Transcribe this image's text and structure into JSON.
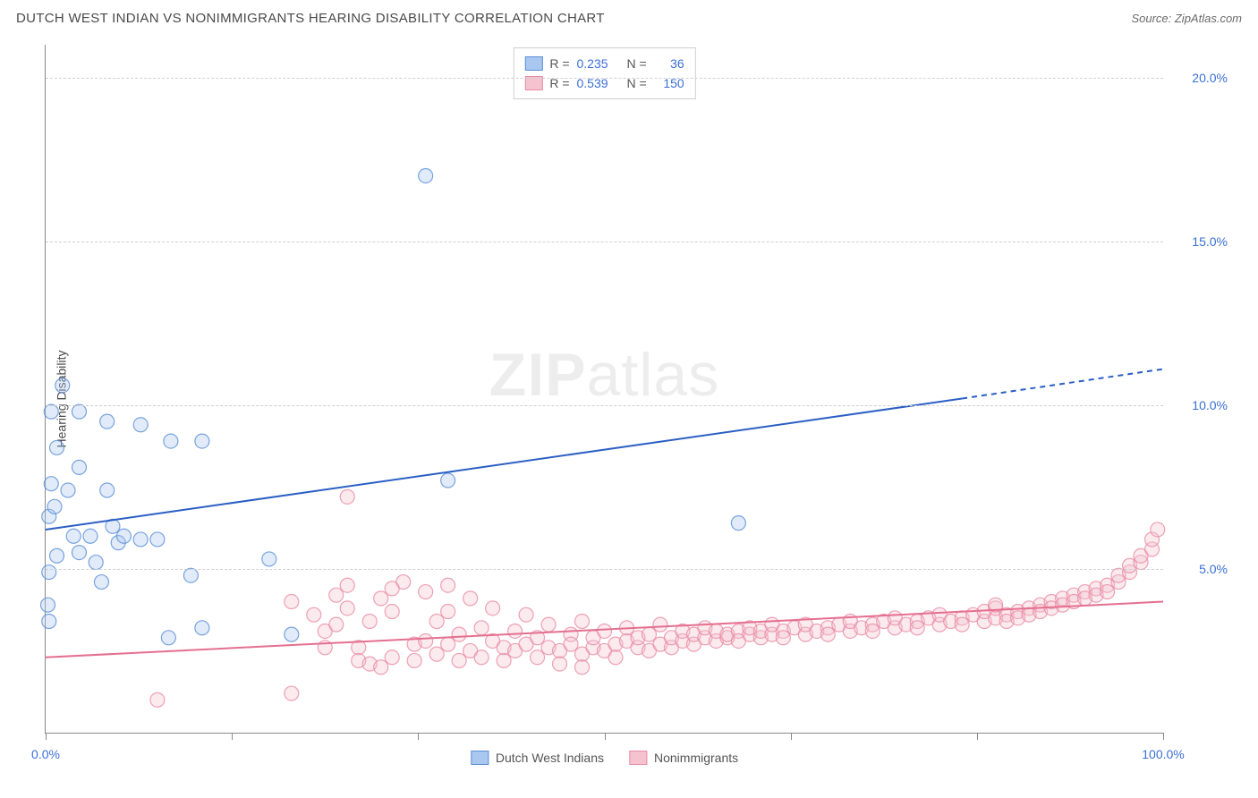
{
  "title": "DUTCH WEST INDIAN VS NONIMMIGRANTS HEARING DISABILITY CORRELATION CHART",
  "source": "Source: ZipAtlas.com",
  "watermark_zip": "ZIP",
  "watermark_atlas": "atlas",
  "ylabel": "Hearing Disability",
  "chart": {
    "type": "scatter",
    "background_color": "#ffffff",
    "grid_color": "#d0d0d0",
    "axis_color": "#888888",
    "xlim": [
      0,
      100
    ],
    "ylim": [
      0,
      21
    ],
    "xticks": [
      0,
      16.67,
      33.33,
      50,
      66.67,
      83.33,
      100
    ],
    "xtick_labels_visible": {
      "0": "0.0%",
      "100": "100.0%"
    },
    "yticks": [
      5,
      10,
      15,
      20
    ],
    "ytick_labels": [
      "5.0%",
      "10.0%",
      "15.0%",
      "20.0%"
    ],
    "marker_radius": 8,
    "marker_fill_opacity": 0.35,
    "marker_stroke_opacity": 0.8,
    "marker_stroke_width": 1.2,
    "trend_line_width": 2,
    "label_fontsize": 14,
    "label_color": "#3b6fd4",
    "series": [
      {
        "name": "Dutch West Indians",
        "color_fill": "#a9c7ef",
        "color_stroke": "#5a8fd6",
        "trend_color": "#2a5fc4",
        "R": "0.235",
        "N": "36",
        "trend": {
          "x1": 0,
          "y1": 6.2,
          "x2": 82,
          "y2": 10.2,
          "extrap_x2": 100,
          "extrap_y2": 11.1
        },
        "points": [
          [
            1.5,
            10.6
          ],
          [
            0.5,
            9.8
          ],
          [
            5.5,
            9.5
          ],
          [
            8.5,
            9.4
          ],
          [
            3.0,
            9.8
          ],
          [
            1.0,
            8.7
          ],
          [
            11.2,
            8.9
          ],
          [
            14.0,
            8.9
          ],
          [
            3.0,
            8.1
          ],
          [
            0.5,
            7.6
          ],
          [
            2.0,
            7.4
          ],
          [
            5.5,
            7.4
          ],
          [
            0.3,
            6.6
          ],
          [
            4.0,
            6.0
          ],
          [
            6.5,
            5.8
          ],
          [
            2.5,
            6.0
          ],
          [
            7.0,
            6.0
          ],
          [
            8.5,
            5.9
          ],
          [
            10.0,
            5.9
          ],
          [
            3.0,
            5.5
          ],
          [
            1.0,
            5.4
          ],
          [
            0.3,
            4.9
          ],
          [
            5.0,
            4.6
          ],
          [
            13.0,
            4.8
          ],
          [
            20.0,
            5.3
          ],
          [
            0.2,
            3.9
          ],
          [
            0.3,
            3.4
          ],
          [
            14.0,
            3.2
          ],
          [
            11.0,
            2.9
          ],
          [
            22.0,
            3.0
          ],
          [
            36.0,
            7.7
          ],
          [
            34.0,
            17.0
          ],
          [
            62.0,
            6.4
          ],
          [
            4.5,
            5.2
          ],
          [
            0.8,
            6.9
          ],
          [
            6.0,
            6.3
          ]
        ]
      },
      {
        "name": "Nonimmigrants",
        "color_fill": "#f4c3cf",
        "color_stroke": "#e88ba3",
        "trend_color": "#e56f90",
        "R": "0.539",
        "N": "150",
        "trend": {
          "x1": 0,
          "y1": 2.3,
          "x2": 100,
          "y2": 4.0
        },
        "points": [
          [
            10,
            1.0
          ],
          [
            22,
            1.2
          ],
          [
            22,
            4.0
          ],
          [
            24,
            3.6
          ],
          [
            25,
            3.1
          ],
          [
            25,
            2.6
          ],
          [
            26,
            4.2
          ],
          [
            26,
            3.3
          ],
          [
            27,
            7.2
          ],
          [
            27,
            3.8
          ],
          [
            28,
            2.6
          ],
          [
            28,
            2.2
          ],
          [
            29,
            2.1
          ],
          [
            29,
            3.4
          ],
          [
            30,
            4.1
          ],
          [
            30,
            2.0
          ],
          [
            31,
            2.3
          ],
          [
            31,
            3.7
          ],
          [
            32,
            4.6
          ],
          [
            33,
            2.7
          ],
          [
            33,
            2.2
          ],
          [
            34,
            4.3
          ],
          [
            34,
            2.8
          ],
          [
            35,
            2.4
          ],
          [
            35,
            3.4
          ],
          [
            36,
            2.7
          ],
          [
            36,
            3.7
          ],
          [
            37,
            3.0
          ],
          [
            37,
            2.2
          ],
          [
            38,
            4.1
          ],
          [
            38,
            2.5
          ],
          [
            39,
            3.2
          ],
          [
            39,
            2.3
          ],
          [
            40,
            3.8
          ],
          [
            40,
            2.8
          ],
          [
            41,
            2.6
          ],
          [
            41,
            2.2
          ],
          [
            42,
            3.1
          ],
          [
            42,
            2.5
          ],
          [
            43,
            3.6
          ],
          [
            43,
            2.7
          ],
          [
            44,
            2.3
          ],
          [
            44,
            2.9
          ],
          [
            45,
            2.6
          ],
          [
            45,
            3.3
          ],
          [
            46,
            2.5
          ],
          [
            46,
            2.1
          ],
          [
            47,
            3.0
          ],
          [
            47,
            2.7
          ],
          [
            48,
            2.4
          ],
          [
            48,
            3.4
          ],
          [
            49,
            2.6
          ],
          [
            49,
            2.9
          ],
          [
            50,
            2.5
          ],
          [
            50,
            3.1
          ],
          [
            51,
            2.7
          ],
          [
            51,
            2.3
          ],
          [
            52,
            2.8
          ],
          [
            52,
            3.2
          ],
          [
            53,
            2.6
          ],
          [
            53,
            2.9
          ],
          [
            54,
            2.5
          ],
          [
            54,
            3.0
          ],
          [
            55,
            2.7
          ],
          [
            55,
            3.3
          ],
          [
            56,
            2.6
          ],
          [
            56,
            2.9
          ],
          [
            57,
            2.8
          ],
          [
            57,
            3.1
          ],
          [
            58,
            2.7
          ],
          [
            58,
            3.0
          ],
          [
            59,
            2.9
          ],
          [
            59,
            3.2
          ],
          [
            60,
            2.8
          ],
          [
            60,
            3.1
          ],
          [
            61,
            2.9
          ],
          [
            61,
            3.0
          ],
          [
            62,
            3.1
          ],
          [
            62,
            2.8
          ],
          [
            63,
            3.0
          ],
          [
            63,
            3.2
          ],
          [
            64,
            2.9
          ],
          [
            64,
            3.1
          ],
          [
            65,
            3.0
          ],
          [
            65,
            3.3
          ],
          [
            66,
            3.1
          ],
          [
            66,
            2.9
          ],
          [
            67,
            3.2
          ],
          [
            68,
            3.0
          ],
          [
            68,
            3.3
          ],
          [
            69,
            3.1
          ],
          [
            70,
            3.2
          ],
          [
            70,
            3.0
          ],
          [
            71,
            3.3
          ],
          [
            72,
            3.1
          ],
          [
            72,
            3.4
          ],
          [
            73,
            3.2
          ],
          [
            74,
            3.3
          ],
          [
            74,
            3.1
          ],
          [
            75,
            3.4
          ],
          [
            76,
            3.2
          ],
          [
            76,
            3.5
          ],
          [
            77,
            3.3
          ],
          [
            78,
            3.4
          ],
          [
            78,
            3.2
          ],
          [
            79,
            3.5
          ],
          [
            80,
            3.3
          ],
          [
            80,
            3.6
          ],
          [
            81,
            3.4
          ],
          [
            82,
            3.5
          ],
          [
            82,
            3.3
          ],
          [
            83,
            3.6
          ],
          [
            84,
            3.4
          ],
          [
            84,
            3.7
          ],
          [
            85,
            3.5
          ],
          [
            85,
            3.8
          ],
          [
            86,
            3.6
          ],
          [
            86,
            3.4
          ],
          [
            87,
            3.7
          ],
          [
            87,
            3.5
          ],
          [
            88,
            3.8
          ],
          [
            88,
            3.6
          ],
          [
            89,
            3.9
          ],
          [
            89,
            3.7
          ],
          [
            90,
            4.0
          ],
          [
            90,
            3.8
          ],
          [
            91,
            4.1
          ],
          [
            91,
            3.9
          ],
          [
            92,
            4.2
          ],
          [
            92,
            4.0
          ],
          [
            93,
            4.3
          ],
          [
            93,
            4.1
          ],
          [
            94,
            4.4
          ],
          [
            94,
            4.2
          ],
          [
            95,
            4.5
          ],
          [
            95,
            4.3
          ],
          [
            96,
            4.6
          ],
          [
            96,
            4.8
          ],
          [
            97,
            4.9
          ],
          [
            97,
            5.1
          ],
          [
            98,
            5.2
          ],
          [
            98,
            5.4
          ],
          [
            99,
            5.6
          ],
          [
            99,
            5.9
          ],
          [
            99.5,
            6.2
          ],
          [
            85,
            3.9
          ],
          [
            27,
            4.5
          ],
          [
            31,
            4.4
          ],
          [
            36,
            4.5
          ],
          [
            48,
            2.0
          ]
        ]
      }
    ]
  },
  "legend_bottom": [
    "Dutch West Indians",
    "Nonimmigrants"
  ]
}
